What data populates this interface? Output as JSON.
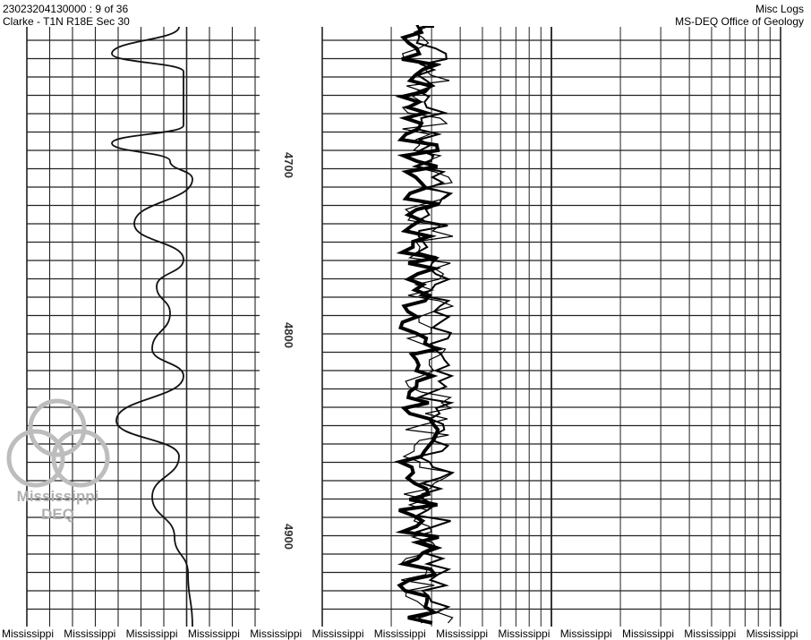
{
  "header": {
    "document_id": "23023204130000 : 9 of 36",
    "location": "Clarke - T1N R18E Sec 30",
    "category": "Misc Logs",
    "agency": "MS-DEQ Office of Geology"
  },
  "depth_labels": [
    "4700",
    "4800",
    "4900"
  ],
  "watermark": {
    "line1": "Mississippi",
    "line2": "DEQ"
  },
  "footer_labels": [
    "Mississippi",
    "Mississippi",
    "Mississippi",
    "Mississippi",
    "Mississippi",
    "Mississippi",
    "Mississippi",
    "Mississippi",
    "Mississippi",
    "Mississippi",
    "Mississippi",
    "Mississippi",
    "Mississippi"
  ]
}
